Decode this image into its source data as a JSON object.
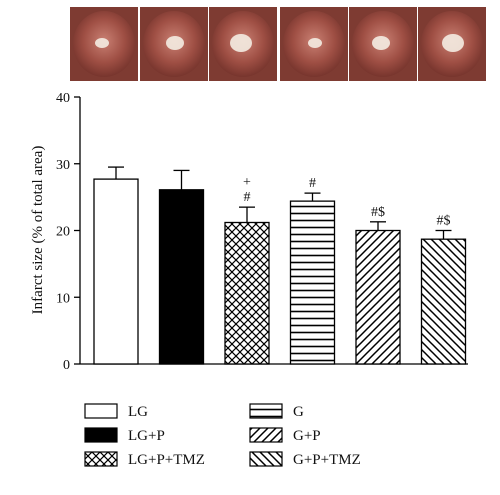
{
  "chart_data": {
    "type": "bar",
    "ylabel": "Infarct size (% of total area)",
    "ylim": [
      0,
      40
    ],
    "yticks": [
      "0",
      "10",
      "20",
      "30",
      "40"
    ],
    "grid": false,
    "legend_position": "bottom",
    "series": [
      {
        "name": "LG",
        "value": 27.7,
        "error": 1.8,
        "annotation": [],
        "fill": "white"
      },
      {
        "name": "LG+P",
        "value": 26.1,
        "error": 2.9,
        "annotation": [],
        "fill": "black"
      },
      {
        "name": "LG+P+TMZ",
        "value": 21.2,
        "error": 2.3,
        "annotation": [
          "+",
          "#"
        ],
        "fill": "crosshatch"
      },
      {
        "name": "G",
        "value": 24.4,
        "error": 1.2,
        "annotation": [
          "#"
        ],
        "fill": "horizontal-lines"
      },
      {
        "name": "G+P",
        "value": 20.0,
        "error": 1.3,
        "annotation": [
          "#$"
        ],
        "fill": "diagonal-lines"
      },
      {
        "name": "G+P+TMZ",
        "value": 18.7,
        "error": 1.3,
        "annotation": [
          "#$"
        ],
        "fill": "diagonal-lines-reverse"
      }
    ]
  },
  "colors": {
    "tissue_dark": "#7e3b32",
    "tissue_light": "#c77d72",
    "lumen": "#f4ece2"
  }
}
